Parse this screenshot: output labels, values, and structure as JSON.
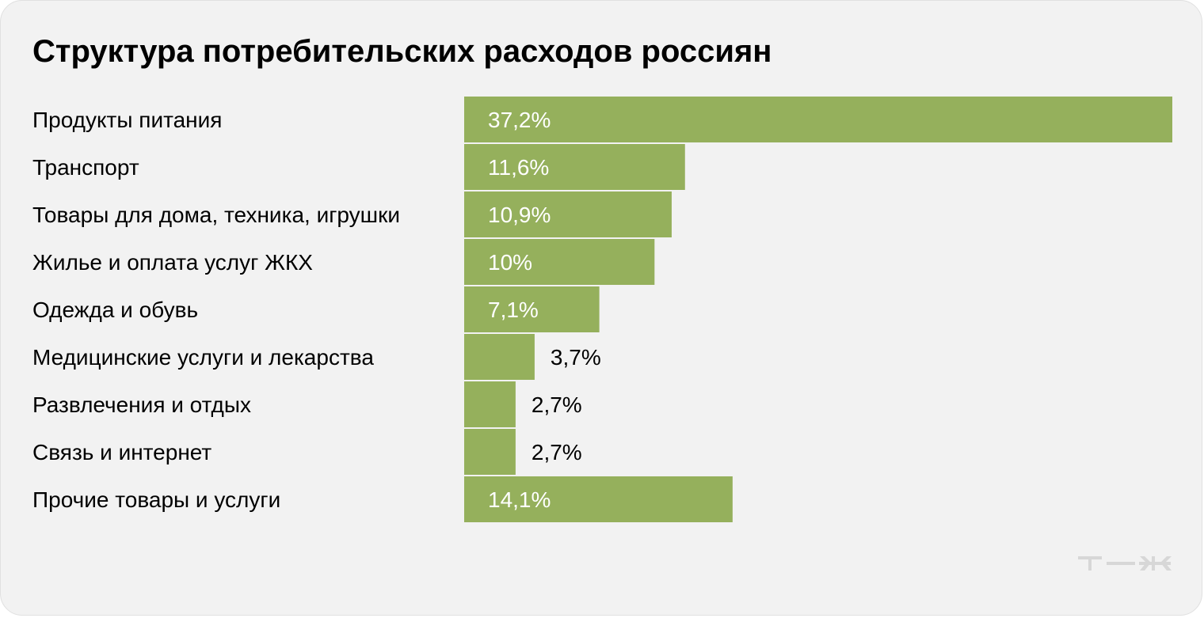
{
  "chart_data": {
    "type": "bar",
    "orientation": "horizontal",
    "title": "Структура потребительских расходов россиян",
    "categories": [
      "Продукты питания",
      "Транспорт",
      "Товары для дома, техника, игрушки",
      "Жилье и оплата услуг ЖКХ",
      "Одежда и обувь",
      "Медицинские услуги и лекарства",
      "Развлечения и отдых",
      "Связь и интернет",
      "Прочие товары и услуги"
    ],
    "values": [
      37.2,
      11.6,
      10.9,
      10,
      7.1,
      3.7,
      2.7,
      2.7,
      14.1
    ],
    "value_labels": [
      "37,2%",
      "11,6%",
      "10,9%",
      "10%",
      "7,1%",
      "3,7%",
      "2,7%",
      "2,7%",
      "14,1%"
    ],
    "unit": "%",
    "xlim": [
      0,
      37.2
    ],
    "grid": false,
    "legend": "none",
    "colors": {
      "bar": "#95b05c",
      "background": "#f2f2f2",
      "text": "#000000",
      "value_inside": "#ffffff",
      "logo": "#d7d7d7"
    }
  },
  "brand": {
    "logo_icon": "tzh-logo-icon"
  }
}
